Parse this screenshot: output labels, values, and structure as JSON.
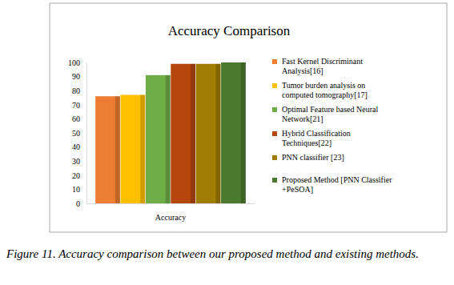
{
  "chart_data": {
    "type": "bar",
    "title": "Accuracy Comparison",
    "caption": "Figure 11. Accuracy comparison between our proposed method and existing methods.",
    "categories": [
      "Accuracy"
    ],
    "series": [
      {
        "name": "Fast Kernel Discriminant Analysis[16]",
        "color": "#ed7d31",
        "values": [
          76
        ]
      },
      {
        "name": "Tumor burden analysis on computed tomography[17]",
        "color": "#ffc000",
        "values": [
          77
        ]
      },
      {
        "name": "Optimal Feature based Neural Network[21]",
        "color": "#70ad47",
        "values": [
          91
        ]
      },
      {
        "name": "Hybrid Classification Techniques[22]",
        "color": "#b5470d",
        "values": [
          99
        ]
      },
      {
        "name": "PNN classifier [23]",
        "color": "#a07c00",
        "values": [
          99
        ]
      },
      {
        "name": "Proposed Method [PNN Classifier +PeSOA]",
        "color": "#4a7a2e",
        "values": [
          100
        ]
      }
    ],
    "ylim": [
      0,
      100
    ],
    "yticks": [
      0,
      10,
      20,
      30,
      40,
      50,
      60,
      70,
      80,
      90,
      100
    ],
    "grid": false,
    "legend": "right"
  }
}
